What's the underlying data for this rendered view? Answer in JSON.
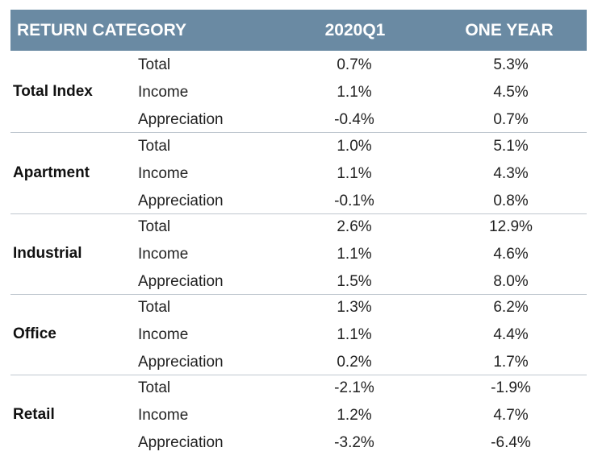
{
  "header": {
    "category": "RETURN CATEGORY",
    "period1": "2020Q1",
    "period2": "ONE YEAR"
  },
  "groups": [
    {
      "name": "Total Index",
      "rows": [
        {
          "metric": "Total",
          "q1": "0.7%",
          "one_year": "5.3%"
        },
        {
          "metric": "Income",
          "q1": "1.1%",
          "one_year": "4.5%"
        },
        {
          "metric": "Appreciation",
          "q1": "-0.4%",
          "one_year": "0.7%"
        }
      ]
    },
    {
      "name": "Apartment",
      "rows": [
        {
          "metric": "Total",
          "q1": "1.0%",
          "one_year": "5.1%"
        },
        {
          "metric": "Income",
          "q1": "1.1%",
          "one_year": "4.3%"
        },
        {
          "metric": "Appreciation",
          "q1": "-0.1%",
          "one_year": "0.8%"
        }
      ]
    },
    {
      "name": "Industrial",
      "rows": [
        {
          "metric": "Total",
          "q1": "2.6%",
          "one_year": "12.9%"
        },
        {
          "metric": "Income",
          "q1": "1.1%",
          "one_year": "4.6%"
        },
        {
          "metric": "Appreciation",
          "q1": "1.5%",
          "one_year": "8.0%"
        }
      ]
    },
    {
      "name": "Office",
      "rows": [
        {
          "metric": "Total",
          "q1": "1.3%",
          "one_year": "6.2%"
        },
        {
          "metric": "Income",
          "q1": "1.1%",
          "one_year": "4.4%"
        },
        {
          "metric": "Appreciation",
          "q1": "0.2%",
          "one_year": "1.7%"
        }
      ]
    },
    {
      "name": "Retail",
      "rows": [
        {
          "metric": "Total",
          "q1": "-2.1%",
          "one_year": "-1.9%"
        },
        {
          "metric": "Income",
          "q1": "1.2%",
          "one_year": "4.7%"
        },
        {
          "metric": "Appreciation",
          "q1": "-3.2%",
          "one_year": "-6.4%"
        }
      ]
    }
  ],
  "colors": {
    "header_background": "#6a8aa3",
    "header_text": "#ffffff",
    "separator": "#bfc7cf"
  }
}
